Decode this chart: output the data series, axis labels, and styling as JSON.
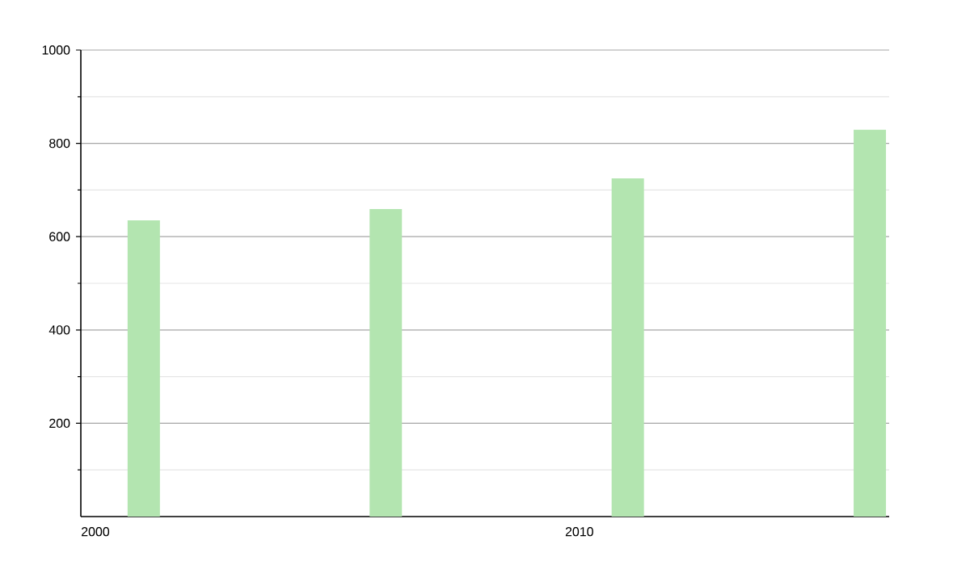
{
  "chart_data": {
    "type": "bar",
    "x": [
      2001,
      2006,
      2011,
      2016
    ],
    "values": [
      635,
      659,
      725,
      829
    ],
    "color": "#b3e5b0",
    "xlim": [
      1999.7,
      2016.4
    ],
    "xticks": [
      2000,
      2010
    ],
    "ylim": [
      0,
      1000
    ],
    "yticks": [
      {
        "value": 100,
        "label": null
      },
      200,
      {
        "value": 300,
        "label": null
      },
      400,
      {
        "value": 500,
        "label": null
      },
      600,
      {
        "value": 700,
        "label": null
      },
      800,
      {
        "value": 900,
        "label": null
      },
      1000
    ],
    "grid": "y"
  }
}
